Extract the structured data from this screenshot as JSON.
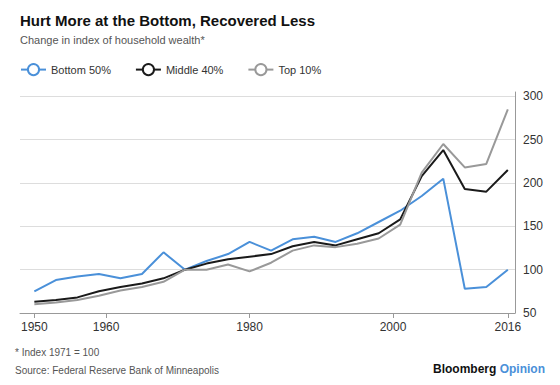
{
  "chart_data": {
    "type": "line",
    "title": "Hurt More at the Bottom, Recovered Less",
    "subtitle": "Change in index of household wealth*",
    "footnote": "* Index 1971 = 100",
    "source": "Source: Federal Reserve Bank of Minneapolis",
    "branding": [
      {
        "text": "Bloomberg",
        "color": "#111111"
      },
      {
        "text": "Opinion",
        "color": "#4A90D9"
      }
    ],
    "x": [
      1950,
      1953,
      1956,
      1959,
      1962,
      1965,
      1968,
      1971,
      1974,
      1977,
      1980,
      1983,
      1986,
      1989,
      1992,
      1995,
      1998,
      2001,
      2004,
      2007,
      2010,
      2013,
      2016
    ],
    "series": [
      {
        "name": "Bottom 50%",
        "color": "#4A90D9",
        "values": [
          75,
          88,
          92,
          95,
          90,
          95,
          120,
          100,
          110,
          118,
          132,
          122,
          135,
          138,
          132,
          142,
          155,
          168,
          185,
          205,
          78,
          80,
          100
        ]
      },
      {
        "name": "Middle 40%",
        "color": "#1a1a1a",
        "values": [
          63,
          65,
          68,
          75,
          80,
          84,
          90,
          100,
          107,
          112,
          115,
          118,
          127,
          132,
          128,
          135,
          142,
          158,
          208,
          238,
          193,
          190,
          215
        ]
      },
      {
        "name": "Top 10%",
        "color": "#999999",
        "values": [
          60,
          62,
          65,
          70,
          76,
          80,
          86,
          100,
          100,
          106,
          98,
          108,
          122,
          128,
          126,
          130,
          136,
          152,
          212,
          245,
          218,
          222,
          285
        ]
      }
    ],
    "xlim": [
      1948,
      2017
    ],
    "xticks": [
      1950,
      1960,
      1980,
      2000,
      2016
    ],
    "ylim": [
      50,
      305
    ],
    "yticks": [
      50,
      100,
      150,
      200,
      250,
      300
    ],
    "grid": true,
    "legend": "top"
  }
}
